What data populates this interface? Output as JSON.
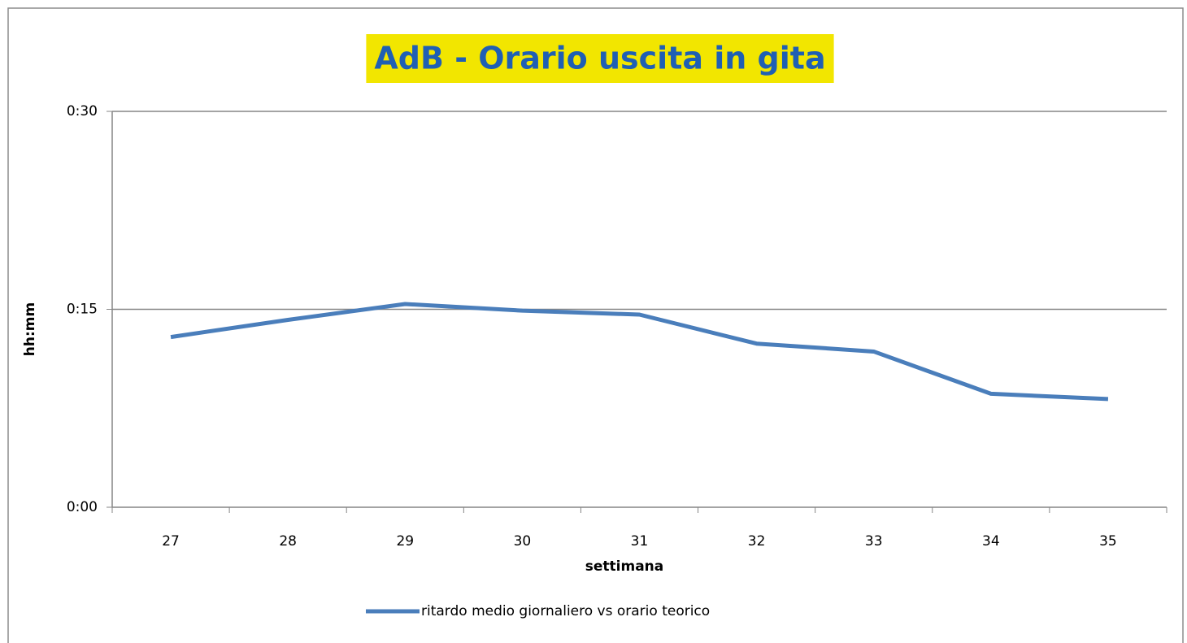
{
  "chart_data": {
    "type": "line",
    "title": "AdB - Orario uscita in gita",
    "categories": [
      "27",
      "28",
      "29",
      "30",
      "31",
      "32",
      "33",
      "34",
      "35"
    ],
    "series": [
      {
        "name": "ritardo medio giornaliero vs orario teorico",
        "color": "#4a7ebb",
        "values": [
          12.9,
          14.2,
          15.4,
          14.9,
          14.6,
          12.4,
          11.8,
          8.6,
          8.2
        ]
      }
    ],
    "ylim": [
      0,
      30
    ],
    "yticks": [
      {
        "value": 0,
        "label": "0:00"
      },
      {
        "value": 15,
        "label": "0:15"
      },
      {
        "value": 30,
        "label": "0:30"
      }
    ],
    "xlabel": "settimana",
    "ylabel": "hh:mm",
    "grid": true,
    "legend": "bottom",
    "title_background": "#f2e600",
    "title_color": "#1f5fb4"
  }
}
